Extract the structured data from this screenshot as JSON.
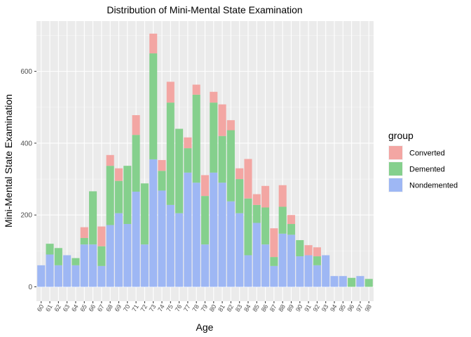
{
  "chart_data": {
    "type": "bar",
    "stacked": true,
    "title": "Distribution of Mini-Mental State Examination",
    "xlabel": "Age",
    "ylabel": "Mini-Mental State Examination",
    "ylim": [
      -40,
      740
    ],
    "yticks": [
      0,
      200,
      400,
      600
    ],
    "grid": true,
    "legend": {
      "title": "group",
      "placement": "right"
    },
    "categories": [
      "60",
      "61",
      "62",
      "63",
      "64",
      "65",
      "66",
      "67",
      "68",
      "69",
      "70",
      "71",
      "72",
      "73",
      "74",
      "75",
      "76",
      "77",
      "78",
      "79",
      "80",
      "81",
      "82",
      "83",
      "84",
      "85",
      "86",
      "87",
      "88",
      "89",
      "90",
      "91",
      "92",
      "93",
      "94",
      "95",
      "96",
      "97",
      "98"
    ],
    "series": [
      {
        "name": "Nondemented",
        "color": "#9EB7F4",
        "values": [
          60,
          90,
          60,
          88,
          60,
          118,
          118,
          58,
          172,
          205,
          175,
          265,
          118,
          355,
          268,
          228,
          205,
          318,
          290,
          118,
          318,
          290,
          238,
          205,
          88,
          178,
          118,
          58,
          148,
          145,
          85,
          88,
          60,
          88,
          30,
          30,
          0,
          30,
          0
        ]
      },
      {
        "name": "Demented",
        "color": "#85D08D",
        "values": [
          0,
          30,
          48,
          0,
          20,
          18,
          148,
          55,
          165,
          90,
          162,
          158,
          170,
          295,
          55,
          285,
          235,
          68,
          245,
          135,
          195,
          130,
          198,
          95,
          158,
          50,
          103,
          25,
          75,
          30,
          45,
          0,
          25,
          0,
          0,
          0,
          25,
          0,
          22
        ]
      },
      {
        "name": "Converted",
        "color": "#F3A6A3",
        "values": [
          0,
          0,
          0,
          0,
          0,
          30,
          0,
          55,
          30,
          35,
          0,
          55,
          0,
          55,
          30,
          58,
          0,
          30,
          28,
          58,
          30,
          88,
          28,
          30,
          110,
          30,
          60,
          80,
          60,
          25,
          0,
          28,
          25,
          0,
          0,
          0,
          0,
          0,
          0
        ]
      }
    ]
  }
}
